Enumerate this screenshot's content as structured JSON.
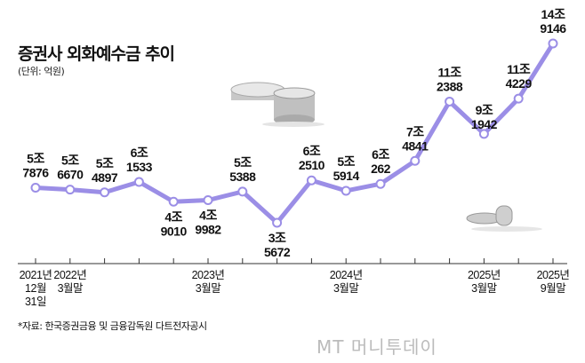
{
  "title": "증권사 외화예수금 추이",
  "unit": "(단위: 억원)",
  "source": "*자료: 한국증권금융 및 금융감독원 다트전자공시",
  "logo": "MT 머니투데이",
  "chart_data": {
    "type": "line",
    "title": "증권사 외화예수금 추이",
    "ylabel": "억원",
    "line_color": "#9b8ee6",
    "values": [
      57876,
      56670,
      54897,
      61533,
      49010,
      49982,
      55388,
      35672,
      62510,
      55914,
      60262,
      74841,
      112388,
      91942,
      114229,
      149146
    ],
    "data_labels": [
      [
        "5조",
        "7876"
      ],
      [
        "5조",
        "6670"
      ],
      [
        "5조",
        "4897"
      ],
      [
        "6조",
        "1533"
      ],
      [
        "4조",
        "9010"
      ],
      [
        "4조",
        "9982"
      ],
      [
        "5조",
        "5388"
      ],
      [
        "3조",
        "5672"
      ],
      [
        "6조",
        "2510"
      ],
      [
        "5조",
        "5914"
      ],
      [
        "6조",
        "262"
      ],
      [
        "7조",
        "4841"
      ],
      [
        "11조",
        "2388"
      ],
      [
        "9조",
        "1942"
      ],
      [
        "11조",
        "4229"
      ],
      [
        "14조",
        "9146"
      ]
    ],
    "x_tick_labels": [
      {
        "index": 0,
        "lines": [
          "2021년",
          "12월",
          "31일"
        ]
      },
      {
        "index": 1,
        "lines": [
          "2022년",
          "3월말"
        ]
      },
      {
        "index": 5,
        "lines": [
          "2023년",
          "3월말"
        ]
      },
      {
        "index": 9,
        "lines": [
          "2024년",
          "3월말"
        ]
      },
      {
        "index": 13,
        "lines": [
          "2025년",
          "3월말"
        ]
      },
      {
        "index": 15,
        "lines": [
          "2025년",
          "9월말"
        ]
      }
    ],
    "grid": false,
    "legend": "none"
  }
}
